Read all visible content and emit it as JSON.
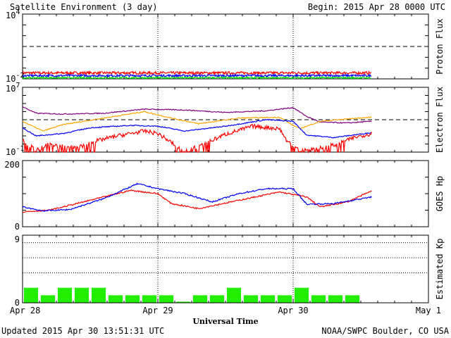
{
  "header": {
    "title": "Satellite Environment (3 day)",
    "begin": "Begin:  2015 Apr 28 0000 UTC"
  },
  "footer": {
    "updated": "Updated 2015 Apr 30 13:51:31 UTC",
    "credit": "NOAA/SWPC Boulder, CO USA"
  },
  "x_axis": {
    "label": "Universal Time",
    "ticks": [
      "Apr 28",
      "Apr 29",
      "Apr 30",
      "May 1"
    ],
    "range_days": [
      0,
      3
    ],
    "data_end_day": 2.58
  },
  "chart_data": [
    {
      "type": "line",
      "panel": "proton",
      "ylabel": "Proton Flux",
      "yscale": "log",
      "ylim_exp": [
        -2,
        4
      ],
      "ytick_labels": [
        {
          "base": "10",
          "exp": "4"
        },
        {
          "base": "10",
          "exp": "-2"
        }
      ],
      "threshold_exp": 1,
      "series": [
        {
          "color": "#ff0000",
          "log_level": -1.45,
          "noise": 0.12
        },
        {
          "color": "#0000ff",
          "log_level": -1.7,
          "noise": 0.1
        },
        {
          "color": "#00dd00",
          "log_level": -1.9,
          "noise": 0.08
        }
      ]
    },
    {
      "type": "line",
      "panel": "electron",
      "ylabel": "Electron Flux",
      "yscale": "log",
      "ylim_exp": [
        -1,
        7
      ],
      "ytick_labels": [
        {
          "base": "10",
          "exp": "7"
        },
        {
          "base": "10",
          "exp": "-1"
        }
      ],
      "threshold_exp": 3,
      "series": [
        {
          "color": "#800080",
          "x": [
            0,
            0.1,
            0.3,
            0.6,
            0.9,
            1.2,
            1.5,
            1.8,
            2.0,
            2.1,
            2.2,
            2.4,
            2.58
          ],
          "y": [
            4.6,
            3.8,
            3.7,
            3.8,
            4.3,
            4.2,
            3.9,
            4.1,
            4.5,
            3.4,
            2.7,
            2.6,
            2.8
          ]
        },
        {
          "color": "#ffa500",
          "x": [
            0,
            0.15,
            0.3,
            0.6,
            0.9,
            1.1,
            1.3,
            1.6,
            1.9,
            2.0,
            2.05,
            2.2,
            2.4,
            2.58
          ],
          "y": [
            2.8,
            1.6,
            2.4,
            3.2,
            4.0,
            3.2,
            2.5,
            3.2,
            3.3,
            2.3,
            1.9,
            2.8,
            3.1,
            3.3
          ]
        },
        {
          "color": "#0000ff",
          "x": [
            0,
            0.1,
            0.3,
            0.5,
            0.8,
            1.0,
            1.2,
            1.5,
            1.8,
            2.0,
            2.1,
            2.3,
            2.58
          ],
          "y": [
            2.0,
            1.0,
            1.3,
            2.0,
            2.3,
            2.2,
            1.6,
            2.2,
            3.0,
            2.8,
            1.1,
            0.8,
            1.4
          ]
        },
        {
          "color": "#ff0000",
          "x": [
            0,
            0.1,
            0.2,
            0.4,
            0.55,
            0.7,
            0.9,
            1.0,
            1.1,
            1.2,
            1.3,
            1.5,
            1.7,
            1.9,
            1.95,
            2.05,
            2.2,
            2.35,
            2.45,
            2.58
          ],
          "y": [
            0.5,
            -0.8,
            0.0,
            -0.5,
            0.4,
            1.0,
            1.6,
            1.3,
            0.2,
            -0.9,
            -0.3,
            1.2,
            2.2,
            1.9,
            0.5,
            -0.9,
            -0.5,
            0.1,
            0.8,
            1.3
          ]
        }
      ]
    },
    {
      "type": "line",
      "panel": "hp",
      "ylabel": "GOES Hp",
      "ylim": [
        0,
        200
      ],
      "ytick_labels": [
        "200",
        "0"
      ],
      "series": [
        {
          "color": "#ff0000",
          "x": [
            0,
            0.2,
            0.5,
            0.8,
            1.0,
            1.1,
            1.3,
            1.6,
            1.9,
            2.1,
            2.2,
            2.4,
            2.58
          ],
          "y": [
            45,
            50,
            80,
            110,
            100,
            70,
            55,
            80,
            105,
            90,
            60,
            75,
            108
          ]
        },
        {
          "color": "#0000ff",
          "x": [
            0,
            0.15,
            0.35,
            0.6,
            0.85,
            1.0,
            1.2,
            1.4,
            1.6,
            1.8,
            2.0,
            2.1,
            2.3,
            2.58
          ],
          "y": [
            60,
            48,
            52,
            85,
            130,
            115,
            100,
            75,
            100,
            115,
            115,
            68,
            70,
            90
          ]
        }
      ]
    },
    {
      "type": "bar",
      "panel": "kp",
      "ylabel": "Estimated Kp",
      "ylim": [
        0,
        9
      ],
      "ytick_labels": [
        "9",
        "0"
      ],
      "gridlines": [
        4,
        6,
        8,
        9
      ],
      "bar_width_days": 0.125,
      "values": [
        2,
        1,
        2,
        2,
        2,
        1,
        1,
        1,
        1,
        0.15,
        1,
        1,
        2,
        1,
        1,
        1,
        2,
        1,
        1,
        1
      ],
      "bar_color": "#22ee00"
    }
  ]
}
